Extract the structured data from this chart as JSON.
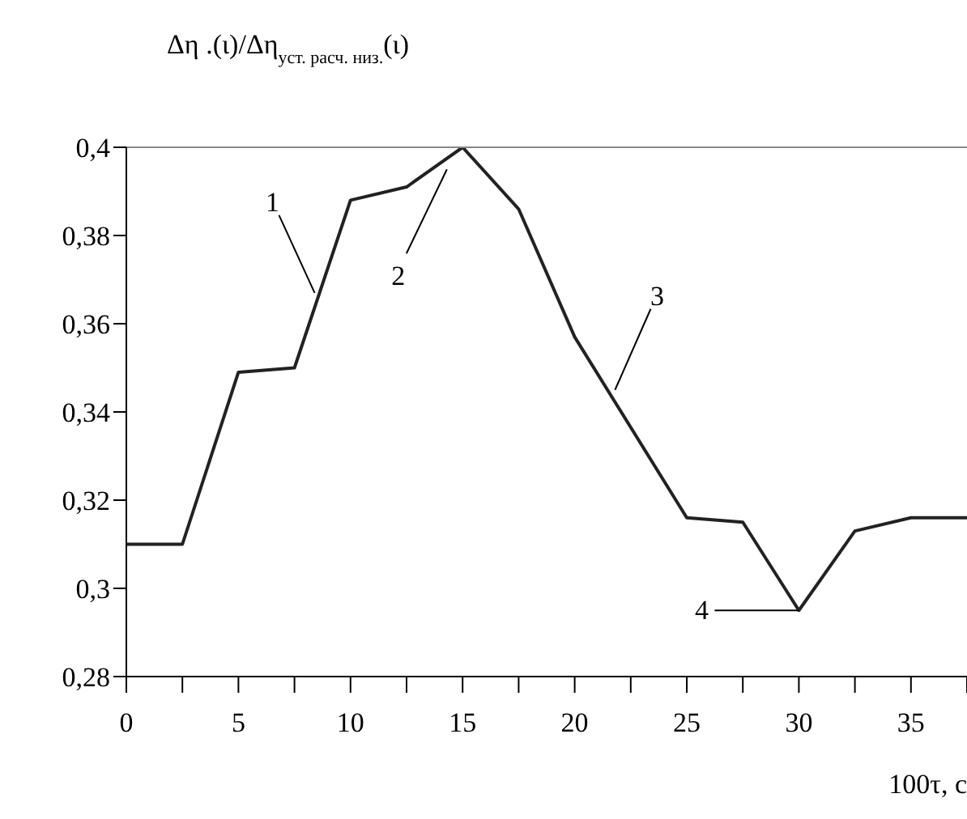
{
  "chart_data": {
    "type": "line",
    "ylabel": "Δη .(ι)/Δη$_{уст. расч. низ.}$(ι)",
    "xlabel": "100τ, с",
    "x": [
      0,
      2.5,
      5,
      7.5,
      10,
      12.5,
      15,
      17.5,
      20,
      25,
      27.5,
      30,
      32.5,
      35,
      37.5
    ],
    "series": [
      {
        "color": "#222222",
        "values": [
          0.31,
          0.31,
          0.349,
          0.35,
          0.388,
          0.391,
          0.4,
          0.386,
          0.357,
          0.316,
          0.315,
          0.295,
          0.313,
          0.316,
          0.316
        ]
      }
    ],
    "xlim": [
      0,
      37.5
    ],
    "xticks": [
      0,
      {
        "value": 2.5,
        "label": null
      },
      5,
      {
        "value": 7.5,
        "label": null
      },
      10,
      {
        "value": 12.5,
        "label": null
      },
      15,
      {
        "value": 17.5,
        "label": null
      },
      20,
      {
        "value": 22.5,
        "label": null
      },
      25,
      {
        "value": 27.5,
        "label": null
      },
      30,
      {
        "value": 32.5,
        "label": null
      },
      35,
      {
        "value": 37.5,
        "label": null
      }
    ],
    "ylim": [
      0.28,
      0.4
    ],
    "yticks": [
      {
        "value": 0.28,
        "label": "0,28"
      },
      {
        "value": 0.3,
        "label": "0,3"
      },
      {
        "value": 0.32,
        "label": "0,32"
      },
      {
        "value": 0.34,
        "label": "0,34"
      },
      {
        "value": 0.36,
        "label": "0,36"
      },
      {
        "value": 0.38,
        "label": "0,38"
      },
      {
        "value": 0.4,
        "label": "0,4"
      }
    ],
    "annotations": [
      {
        "text": "1",
        "x": 8.4,
        "y": 0.367
      },
      {
        "text": "2",
        "x": 14.3,
        "y": 0.395
      },
      {
        "text": "3",
        "x": 21.8,
        "y": 0.345
      },
      {
        "text": "4",
        "x": 30,
        "y": 0.295
      }
    ],
    "grid": false,
    "legend": false,
    "marker": "none",
    "line_style": "solid"
  }
}
